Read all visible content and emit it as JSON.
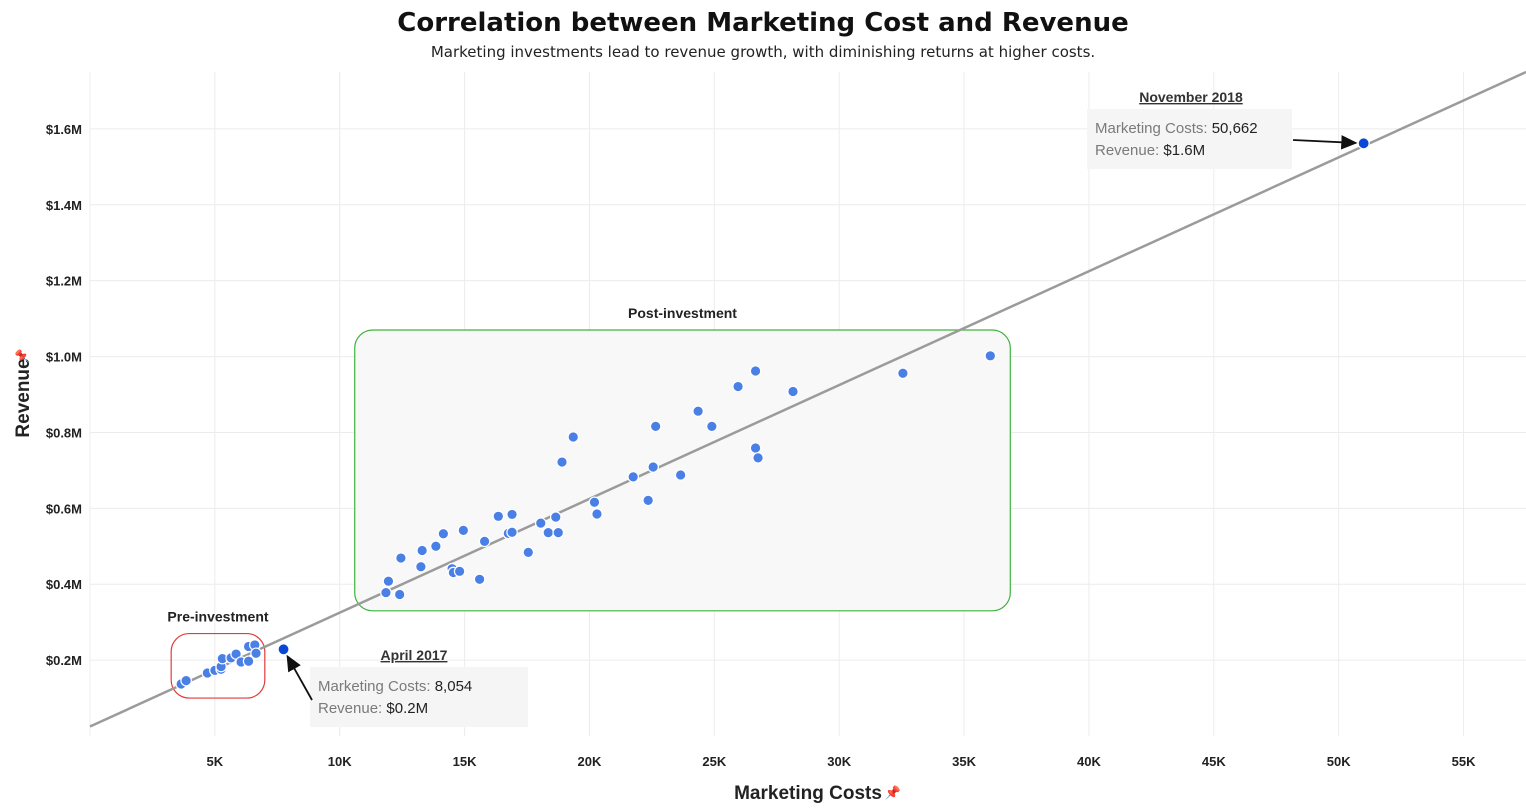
{
  "chart_data": {
    "type": "scatter",
    "title": "Correlation between Marketing Cost and Revenue",
    "subtitle": "Marketing investments lead to revenue growth, with diminishing returns at higher costs.",
    "xlabel": "Marketing Costs",
    "ylabel": "Revenue",
    "xlim": [
      0,
      57500
    ],
    "ylim": [
      0,
      1.75
    ],
    "x_ticks": [
      5000,
      10000,
      15000,
      20000,
      25000,
      30000,
      35000,
      40000,
      45000,
      50000,
      55000
    ],
    "x_tick_labels": [
      "5K",
      "10K",
      "15K",
      "20K",
      "25K",
      "30K",
      "35K",
      "40K",
      "45K",
      "50K",
      "55K"
    ],
    "y_ticks": [
      0.2,
      0.4,
      0.6,
      0.8,
      1.0,
      1.2,
      1.4,
      1.6
    ],
    "y_tick_labels": [
      "$0.2M",
      "$0.4M",
      "$0.6M",
      "$0.8M",
      "$1.0M",
      "$1.2M",
      "$1.4M",
      "$1.6M"
    ],
    "grid": true,
    "point_color": "#4a7fe6",
    "highlight_color": "#0b47d6",
    "trendline": {
      "color": "#9b9b9b",
      "points": [
        [
          0,
          0.025
        ],
        [
          57500,
          1.75
        ]
      ]
    },
    "series": [
      {
        "values": [
          [
            3650,
            0.137
          ],
          [
            3850,
            0.146
          ],
          [
            4700,
            0.166
          ],
          [
            5000,
            0.173
          ],
          [
            5250,
            0.176
          ],
          [
            5250,
            0.183
          ],
          [
            5300,
            0.204
          ],
          [
            5650,
            0.206
          ],
          [
            5850,
            0.216
          ],
          [
            6050,
            0.195
          ],
          [
            6350,
            0.197
          ],
          [
            6350,
            0.236
          ],
          [
            6600,
            0.24
          ],
          [
            6650,
            0.218
          ],
          [
            11850,
            0.378
          ],
          [
            11950,
            0.408
          ],
          [
            12400,
            0.373
          ],
          [
            12450,
            0.469
          ],
          [
            13250,
            0.446
          ],
          [
            13300,
            0.489
          ],
          [
            13850,
            0.5
          ],
          [
            14150,
            0.533
          ],
          [
            14500,
            0.441
          ],
          [
            14550,
            0.431
          ],
          [
            14800,
            0.434
          ],
          [
            14950,
            0.542
          ],
          [
            15600,
            0.413
          ],
          [
            15800,
            0.513
          ],
          [
            16350,
            0.579
          ],
          [
            16750,
            0.534
          ],
          [
            16900,
            0.584
          ],
          [
            16900,
            0.537
          ],
          [
            17550,
            0.484
          ],
          [
            18050,
            0.561
          ],
          [
            18350,
            0.536
          ],
          [
            18650,
            0.577
          ],
          [
            18750,
            0.536
          ],
          [
            18900,
            0.722
          ],
          [
            19350,
            0.788
          ],
          [
            20200,
            0.616
          ],
          [
            20300,
            0.585
          ],
          [
            21750,
            0.683
          ],
          [
            22350,
            0.621
          ],
          [
            22550,
            0.709
          ],
          [
            22650,
            0.816
          ],
          [
            23650,
            0.688
          ],
          [
            24350,
            0.856
          ],
          [
            24900,
            0.816
          ],
          [
            25950,
            0.921
          ],
          [
            26650,
            0.759
          ],
          [
            26650,
            0.962
          ],
          [
            26750,
            0.733
          ],
          [
            28150,
            0.908
          ],
          [
            32550,
            0.956
          ],
          [
            36050,
            1.002
          ]
        ]
      }
    ],
    "highlights": [
      {
        "date": "April 2017",
        "x": 7750,
        "y": 0.2285,
        "cost_label": "Marketing Costs:",
        "cost_value": "8,054",
        "rev_label": "Revenue:",
        "rev_value": "$0.2M"
      },
      {
        "date": "November 2018",
        "x": 51000,
        "y": 1.562,
        "cost_label": "Marketing Costs:",
        "cost_value": "50,662",
        "rev_label": "Revenue:",
        "rev_value": "$1.6M"
      }
    ],
    "regions": [
      {
        "label": "Pre-investment",
        "x": [
          3250,
          7000
        ],
        "y": [
          0.1,
          0.27
        ],
        "color": "#e23b3b"
      },
      {
        "label": "Post-investment",
        "x": [
          10600,
          36850
        ],
        "y": [
          0.33,
          1.07
        ],
        "color": "#3fb43f"
      }
    ]
  }
}
